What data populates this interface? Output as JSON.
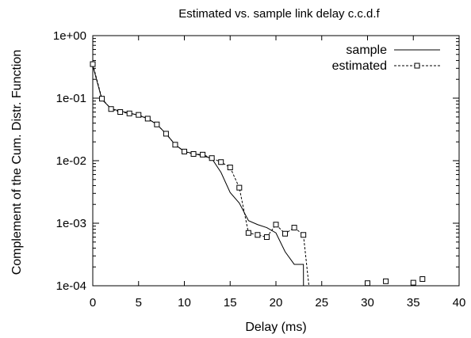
{
  "chart_data": {
    "type": "line",
    "title": "Estimated vs. sample link delay c.c.d.f",
    "xlabel": "Delay  (ms)",
    "ylabel": "Complement of the Cum. Distr. Function",
    "xlim": [
      0,
      40
    ],
    "ylim": [
      0.0001,
      1
    ],
    "yscale": "log",
    "x_ticks": [
      "0",
      "5",
      "10",
      "15",
      "20",
      "25",
      "30",
      "35",
      "40"
    ],
    "x_tick_values": [
      0,
      5,
      10,
      15,
      20,
      25,
      30,
      35,
      40
    ],
    "y_ticks": [
      "1e-04",
      "1e-03",
      "1e-02",
      "1e-01",
      "1e+00"
    ],
    "y_tick_values": [
      0.0001,
      0.001,
      0.01,
      0.1,
      1
    ],
    "grid": false,
    "legend_position": "top-right",
    "series": [
      {
        "name": "sample",
        "style": "solid",
        "marker": "none",
        "x": [
          0,
          1,
          2,
          3,
          4,
          5,
          6,
          7,
          8,
          9,
          10,
          11,
          12,
          13,
          14,
          15,
          16,
          17,
          18,
          19,
          20,
          21,
          22,
          23,
          23.01
        ],
        "y": [
          0.33,
          0.095,
          0.068,
          0.062,
          0.058,
          0.053,
          0.047,
          0.038,
          0.027,
          0.018,
          0.014,
          0.013,
          0.012,
          0.0108,
          0.0065,
          0.0031,
          0.0021,
          0.0011,
          0.00095,
          0.00085,
          0.0007,
          0.00035,
          0.00022,
          0.00022,
          0.0001
        ]
      },
      {
        "name": "estimated",
        "style": "dashed",
        "marker": "square",
        "segments": [
          {
            "x": [
              0,
              1,
              2,
              3,
              4,
              5,
              6,
              7,
              8,
              9,
              10,
              11,
              12,
              13,
              14,
              15,
              16,
              17,
              18,
              19,
              20,
              21,
              22,
              23,
              23.6
            ],
            "y": [
              0.35,
              0.098,
              0.067,
              0.06,
              0.057,
              0.054,
              0.047,
              0.038,
              0.027,
              0.018,
              0.014,
              0.0128,
              0.0125,
              0.011,
              0.0095,
              0.0078,
              0.0037,
              0.0007,
              0.00065,
              0.0006,
              0.00095,
              0.00068,
              0.00085,
              0.00065,
              0.0001
            ]
          },
          {
            "x": [
              30,
              32,
              35,
              36
            ],
            "y": [
              0.00011,
              0.000118,
              0.000112,
              0.000128
            ]
          }
        ]
      }
    ]
  }
}
